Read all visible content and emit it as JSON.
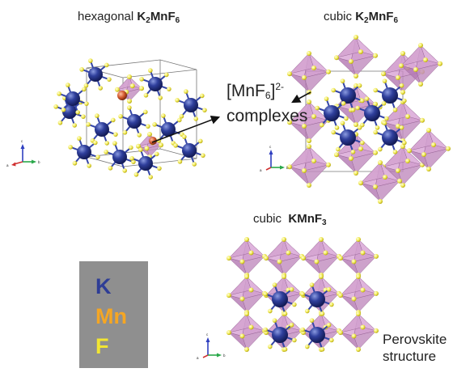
{
  "panels": {
    "hex": {
      "prefix": "hexagonal",
      "formula": {
        "main": "K",
        "sub1": "2",
        "mid": "MnF",
        "sub2": "6"
      }
    },
    "cubic_k2": {
      "prefix": "cubic",
      "formula": {
        "main": "K",
        "sub1": "2",
        "mid": "MnF",
        "sub2": "6"
      }
    },
    "cubic_kmnf3": {
      "prefix": "cubic",
      "formula": {
        "main": "KMnF",
        "sub": "3"
      }
    }
  },
  "annotations": {
    "complex": {
      "open": "[MnF",
      "sub": "6",
      "close": "]",
      "charge": "2-",
      "line2": "complexes"
    },
    "perovskite": {
      "line1": "Perovskite",
      "line2": "structure"
    }
  },
  "legend": {
    "items": [
      {
        "label": "K",
        "color": "#2e3d96"
      },
      {
        "label": "Mn",
        "color": "#f5a623"
      },
      {
        "label": "F",
        "color": "#f2e532"
      }
    ]
  },
  "axes": {
    "x_label": "a",
    "y_label": "b",
    "z_label": "c"
  }
}
